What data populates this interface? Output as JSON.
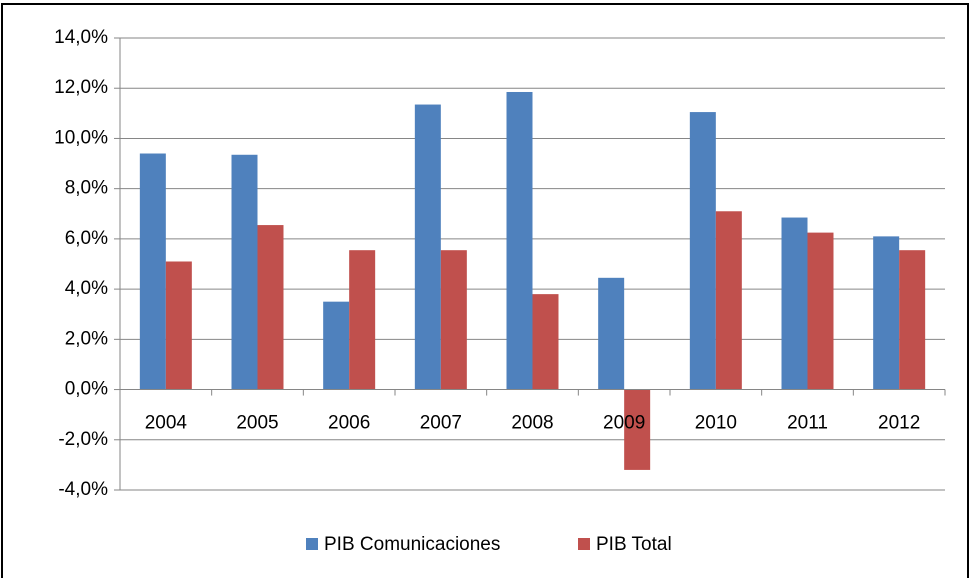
{
  "chart_data": {
    "type": "bar",
    "categories": [
      "2004",
      "2005",
      "2006",
      "2007",
      "2008",
      "2009",
      "2010",
      "2011",
      "2012"
    ],
    "series": [
      {
        "name": "PIB Comunicaciones",
        "color": "#4f81bd",
        "values": [
          9.4,
          9.35,
          3.5,
          11.35,
          11.85,
          4.45,
          11.05,
          6.85,
          6.1
        ]
      },
      {
        "name": "PIB Total",
        "color": "#c0504d",
        "values": [
          5.1,
          6.55,
          5.55,
          5.55,
          3.8,
          -3.2,
          7.1,
          6.25,
          5.55
        ]
      }
    ],
    "ylim": [
      -4,
      14
    ],
    "yticks": [
      {
        "value": -4,
        "label": "-4,0%"
      },
      {
        "value": -2,
        "label": "-2,0%"
      },
      {
        "value": 0,
        "label": "0,0%"
      },
      {
        "value": 2,
        "label": "2,0%"
      },
      {
        "value": 4,
        "label": "4,0%"
      },
      {
        "value": 6,
        "label": "6,0%"
      },
      {
        "value": 8,
        "label": "8,0%"
      },
      {
        "value": 10,
        "label": "10,0%"
      },
      {
        "value": 12,
        "label": "12,0%"
      },
      {
        "value": 14,
        "label": "14,0%"
      }
    ],
    "grid": true,
    "legend": "bottom"
  }
}
